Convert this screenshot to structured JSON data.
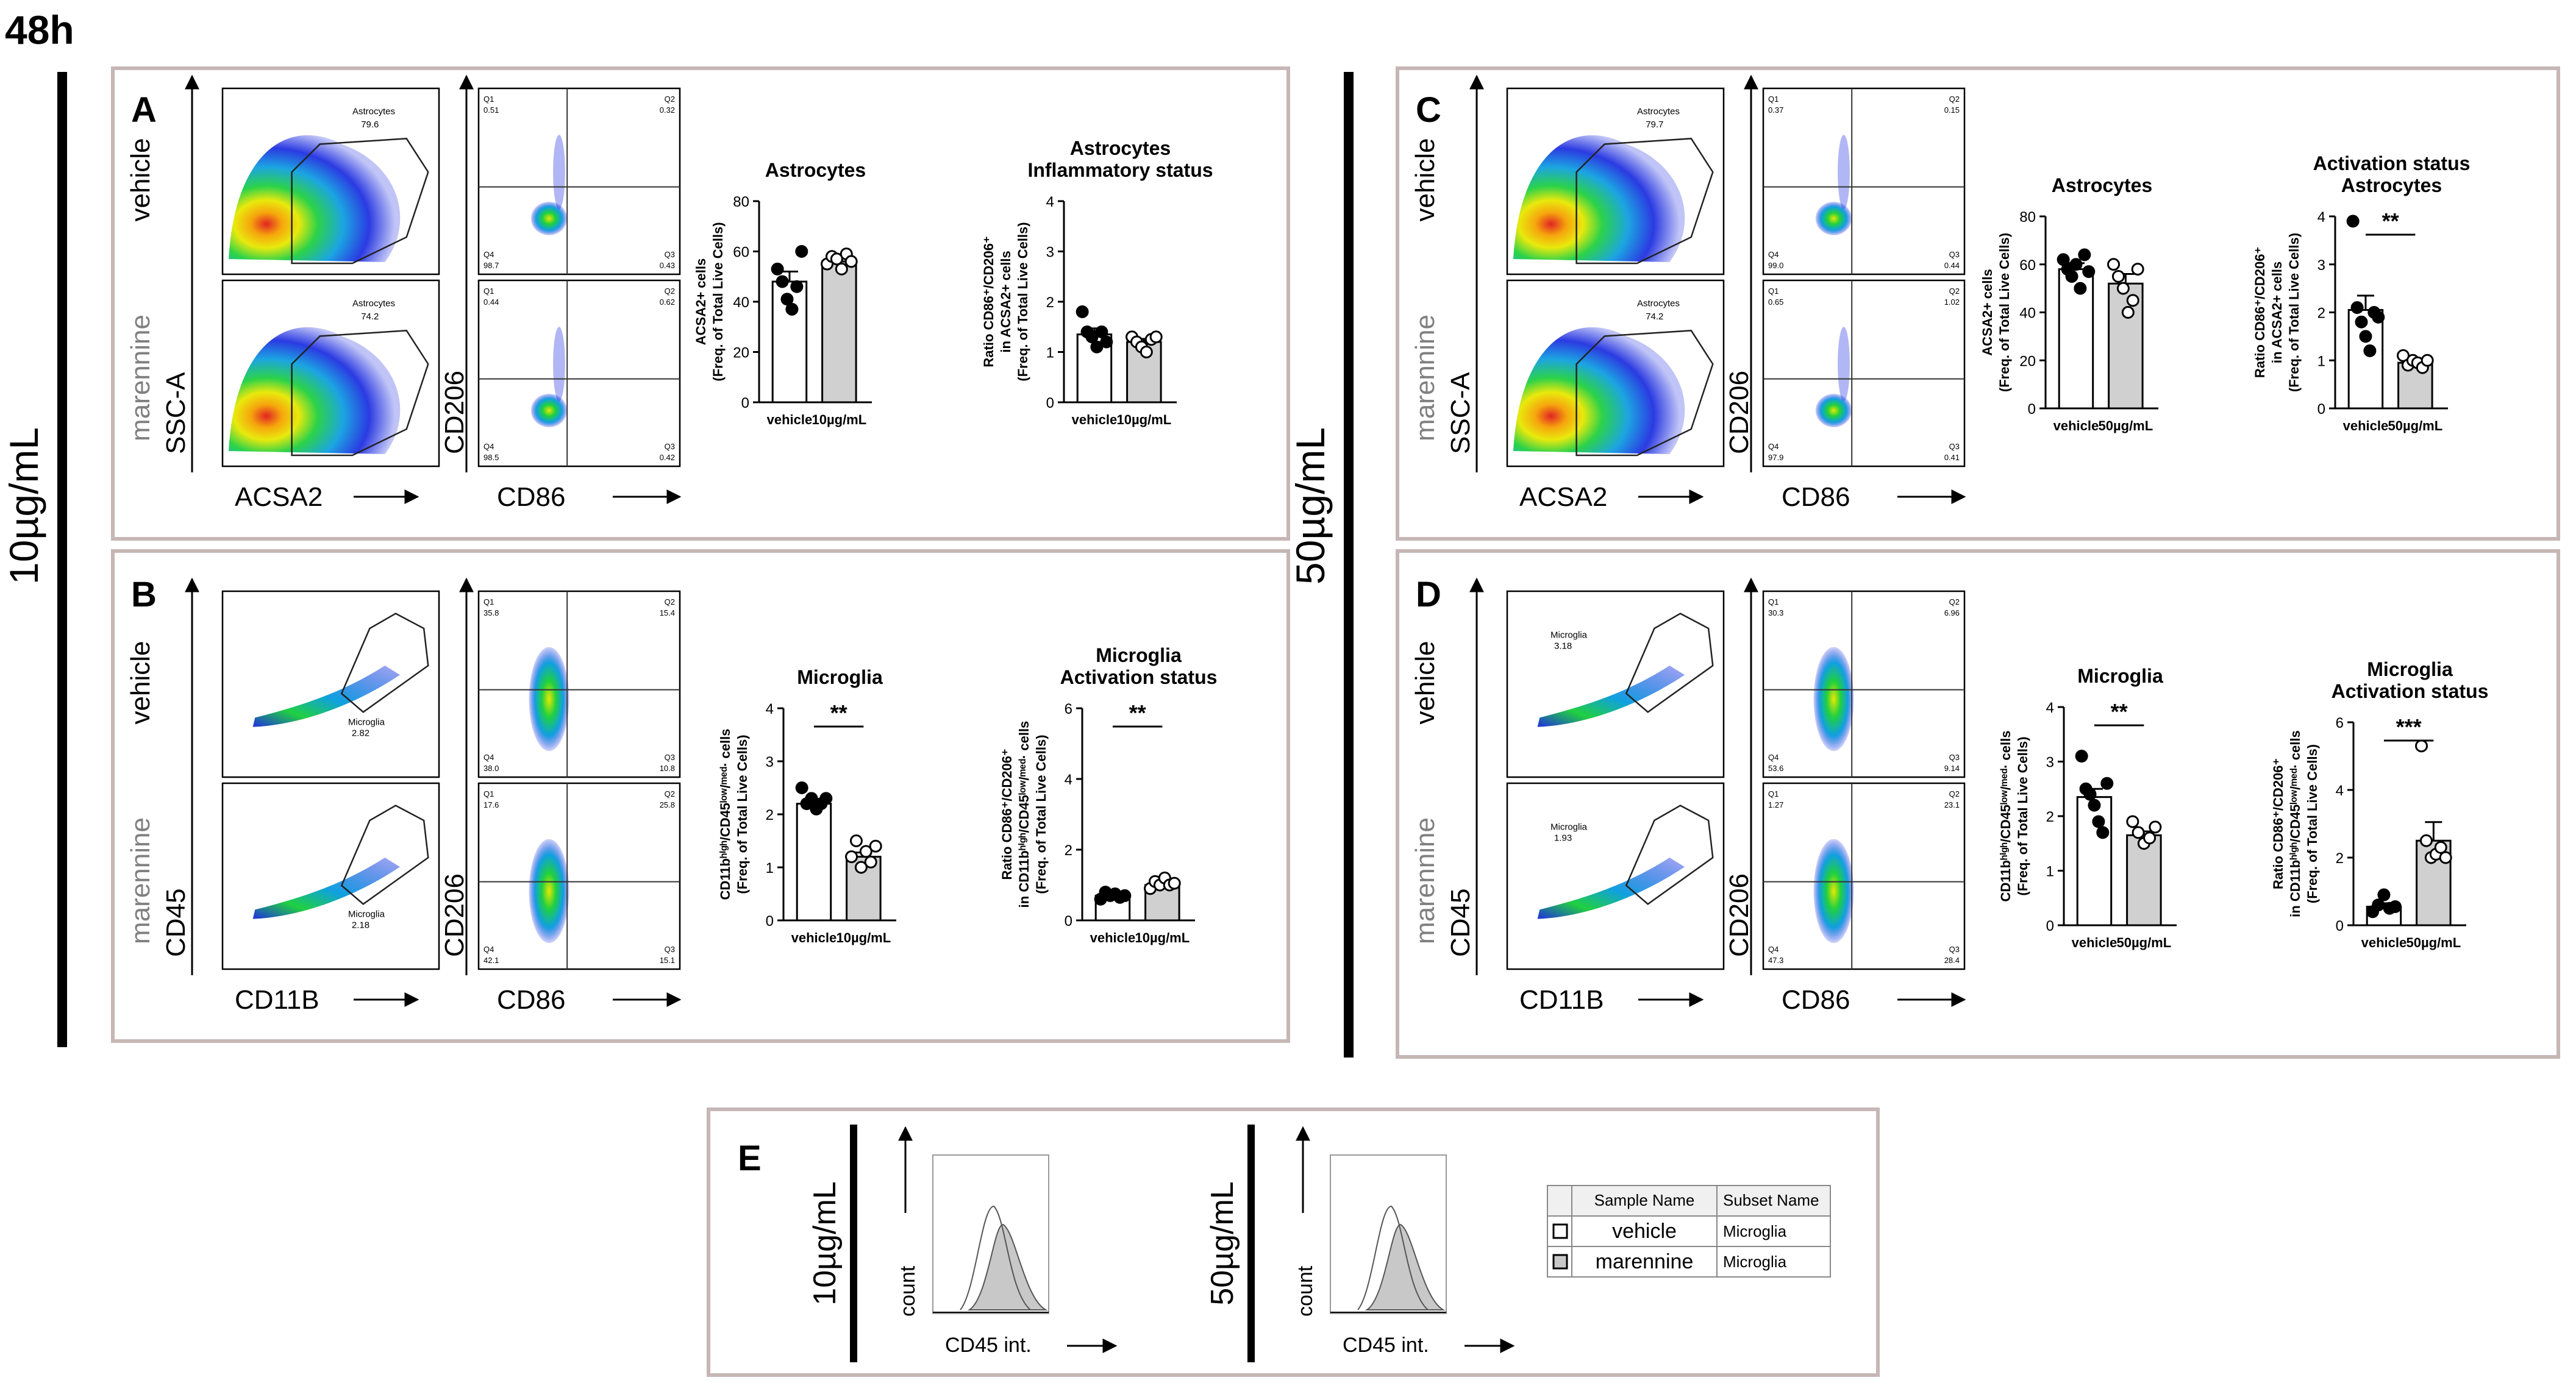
{
  "header": {
    "time_label": "48h"
  },
  "side_labels": {
    "low": "10µg/mL",
    "high": "50µg/mL"
  },
  "panels": {
    "A": "A",
    "B": "B",
    "C": "C",
    "D": "D",
    "E": "E"
  },
  "rows": {
    "vehicle": "vehicle",
    "marennine": "marennine"
  },
  "axes": {
    "ssc": "SSC-A",
    "acsa2": "ACSA2",
    "cd206": "CD206",
    "cd86": "CD86",
    "cd45": "CD45",
    "cd11b": "CD11B",
    "count": "count",
    "cd45int": "CD45 int."
  },
  "quadrant_ids": {
    "q1": "Q1",
    "q2": "Q2",
    "q3": "Q3",
    "q4": "Q4"
  },
  "gates": {
    "astro": "Astrocytes",
    "micro": "Microglia"
  },
  "A": {
    "gate_vehicle": "79.6",
    "gate_marennine": "74.2",
    "quad_vehicle": {
      "q1": "0.51",
      "q2": "0.32",
      "q3": "0.43",
      "q4": "98.7"
    },
    "quad_marennine": {
      "q1": "0.44",
      "q2": "0.62",
      "q3": "0.42",
      "q4": "98.5"
    }
  },
  "B": {
    "gate_vehicle": "2.82",
    "gate_marennine": "2.18",
    "quad_vehicle": {
      "q1": "35.8",
      "q2": "15.4",
      "q3": "10.8",
      "q4": "38.0"
    },
    "quad_marennine": {
      "q1": "17.6",
      "q2": "25.8",
      "q3": "15.1",
      "q4": "42.1"
    }
  },
  "C": {
    "gate_vehicle": "79.7",
    "gate_marennine": "74.2",
    "quad_vehicle": {
      "q1": "0.37",
      "q2": "0.15",
      "q3": "0.44",
      "q4": "99.0"
    },
    "quad_marennine": {
      "q1": "0.65",
      "q2": "1.02",
      "q3": "0.41",
      "q4": "97.9"
    }
  },
  "D": {
    "gate_vehicle": "3.18",
    "gate_marennine": "1.93",
    "quad_vehicle": {
      "q1": "30.3",
      "q2": "6.96",
      "q3": "9.14",
      "q4": "53.6"
    },
    "quad_marennine": {
      "q1": "1.27",
      "q2": "23.1",
      "q3": "28.4",
      "q4": "47.3"
    }
  },
  "legend_table": {
    "headers": [
      "Sample Name",
      "Subset Name"
    ],
    "rows": [
      {
        "sample": "vehicle",
        "subset": "Microglia",
        "fill": "#ffffff"
      },
      {
        "sample": "marennine",
        "subset": "Microglia",
        "fill": "#c8c8c8"
      }
    ]
  },
  "chart_data": [
    {
      "id": "A1",
      "type": "bar",
      "title": "Astrocytes",
      "categories": [
        "vehicle",
        "10µg/mL"
      ],
      "values": [
        48,
        56
      ],
      "ylabel_lines": [
        "ACSA2+ cells",
        "(Freq. of Total Live Cells)"
      ],
      "ylim": [
        0,
        80
      ],
      "yticks": [
        0,
        20,
        40,
        60,
        80
      ],
      "significance": "",
      "points": [
        [
          53,
          48,
          41,
          37,
          46,
          60
        ],
        [
          55,
          58,
          57,
          53,
          59,
          56
        ]
      ],
      "errors": [
        4,
        1.5
      ]
    },
    {
      "id": "A2",
      "type": "bar",
      "title": "Astrocytes Inflammatory status",
      "title_lines": [
        "Astrocytes",
        "Inflammatory status"
      ],
      "categories": [
        "vehicle",
        "10µg/mL"
      ],
      "values": [
        1.35,
        1.2
      ],
      "ylabel_lines": [
        "Ratio CD86⁺/CD206⁺",
        "in ACSA2+ cells",
        "(Freq. of Total Live Cells)"
      ],
      "ylim": [
        0,
        4
      ],
      "yticks": [
        0,
        1,
        2,
        3,
        4
      ],
      "significance": "",
      "points": [
        [
          1.8,
          1.4,
          1.3,
          1.1,
          1.4,
          1.2
        ],
        [
          1.3,
          1.2,
          1.1,
          1.0,
          1.25,
          1.3
        ]
      ],
      "errors": [
        0.12,
        0.06
      ]
    },
    {
      "id": "B1",
      "type": "bar",
      "title": "Microglia",
      "categories": [
        "vehicle",
        "10µg/mL"
      ],
      "values": [
        2.2,
        1.2
      ],
      "ylabel_lines": [
        "CD11bʰⁱᵍʰ/CD45ˡᵒʷ/ᵐᵉᵈ· cells",
        "(Freq. of Total Live Cells)"
      ],
      "ylim": [
        0,
        4
      ],
      "yticks": [
        0,
        1,
        2,
        3,
        4
      ],
      "significance": "**",
      "points": [
        [
          2.5,
          2.2,
          2.3,
          2.1,
          2.2,
          2.3
        ],
        [
          1.2,
          1.5,
          1.0,
          1.3,
          1.1,
          1.4
        ]
      ],
      "errors": [
        0.07,
        0.08
      ]
    },
    {
      "id": "B2",
      "type": "bar",
      "title": "Microglia Activation status",
      "title_lines": [
        "Microglia",
        "Activation status"
      ],
      "categories": [
        "vehicle",
        "10µg/mL"
      ],
      "values": [
        0.7,
        1.0
      ],
      "ylabel_lines": [
        "Ratio CD86⁺/CD206⁺",
        "in CD11bʰⁱᵍʰ/CD45ˡᵒʷ/ᵐᵉᵈ· cells",
        "(Freq. of Total Live Cells)"
      ],
      "ylim": [
        0,
        6
      ],
      "yticks": [
        0,
        2,
        4,
        6
      ],
      "significance": "**",
      "points": [
        [
          0.6,
          0.8,
          0.7,
          0.75,
          0.65,
          0.7
        ],
        [
          0.9,
          1.1,
          1.0,
          1.2,
          1.0,
          1.05
        ]
      ],
      "errors": [
        0.04,
        0.05
      ]
    },
    {
      "id": "C1",
      "type": "bar",
      "title": "Astrocytes",
      "categories": [
        "vehicle",
        "50µg/mL"
      ],
      "values": [
        58,
        52
      ],
      "ylabel_lines": [
        "ACSA2+ cells",
        "(Freq. of Total Live Cells)"
      ],
      "ylim": [
        0,
        80
      ],
      "yticks": [
        0,
        20,
        40,
        60,
        80
      ],
      "significance": "",
      "points": [
        [
          62,
          58,
          55,
          60,
          50,
          64,
          57
        ],
        [
          60,
          55,
          50,
          40,
          45,
          58
        ]
      ],
      "errors": [
        2.5,
        4
      ]
    },
    {
      "id": "C2",
      "type": "bar",
      "title": "Activation status Astrocytes",
      "title_lines": [
        "Activation status",
        "Astrocytes"
      ],
      "categories": [
        "vehicle",
        "50µg/mL"
      ],
      "values": [
        2.05,
        0.95
      ],
      "ylabel_lines": [
        "Ratio CD86⁺/CD206⁺",
        "in ACSA2+ cells",
        "(Freq. of Total Live Cells)"
      ],
      "ylim": [
        0,
        4
      ],
      "yticks": [
        0,
        1,
        2,
        3,
        4
      ],
      "significance": "**",
      "points": [
        [
          3.9,
          2.1,
          1.8,
          1.5,
          1.2,
          2.0,
          1.9
        ],
        [
          1.1,
          0.9,
          1.0,
          0.95,
          0.85,
          1.0
        ]
      ],
      "errors": [
        0.3,
        0.05
      ]
    },
    {
      "id": "D1",
      "type": "bar",
      "title": "Microglia",
      "categories": [
        "vehicle",
        "50µg/mL"
      ],
      "values": [
        2.35,
        1.65
      ],
      "ylabel_lines": [
        "CD11bʰⁱᵍʰ/CD45ˡᵒʷ/ᵐᵉᵈ· cells",
        "(Freq. of Total Live Cells)"
      ],
      "ylim": [
        0,
        4
      ],
      "yticks": [
        0,
        1,
        2,
        3,
        4
      ],
      "significance": "**",
      "points": [
        [
          3.1,
          2.5,
          2.4,
          2.2,
          1.9,
          1.7,
          2.6
        ],
        [
          1.9,
          1.7,
          1.5,
          1.6,
          1.8
        ]
      ],
      "errors": [
        0.15,
        0.07
      ]
    },
    {
      "id": "D2",
      "type": "bar",
      "title": "Microglia Activation status",
      "title_lines": [
        "Microglia",
        "Activation status"
      ],
      "categories": [
        "vehicle",
        "50µg/mL"
      ],
      "values": [
        0.55,
        2.5
      ],
      "ylabel_lines": [
        "Ratio CD86⁺/CD206⁺",
        "in CD11bʰⁱᵍʰ/CD45ˡᵒʷ/ᵐᵉᵈ· cells",
        "(Freq. of Total Live Cells)"
      ],
      "ylim": [
        0,
        6
      ],
      "yticks": [
        0,
        2,
        4,
        6
      ],
      "significance": "***",
      "points": [
        [
          0.4,
          0.6,
          0.9,
          0.5,
          0.55
        ],
        [
          5.3,
          2.5,
          2.0,
          2.1,
          2.3,
          2.0
        ]
      ],
      "errors": [
        0.1,
        0.55
      ]
    }
  ]
}
